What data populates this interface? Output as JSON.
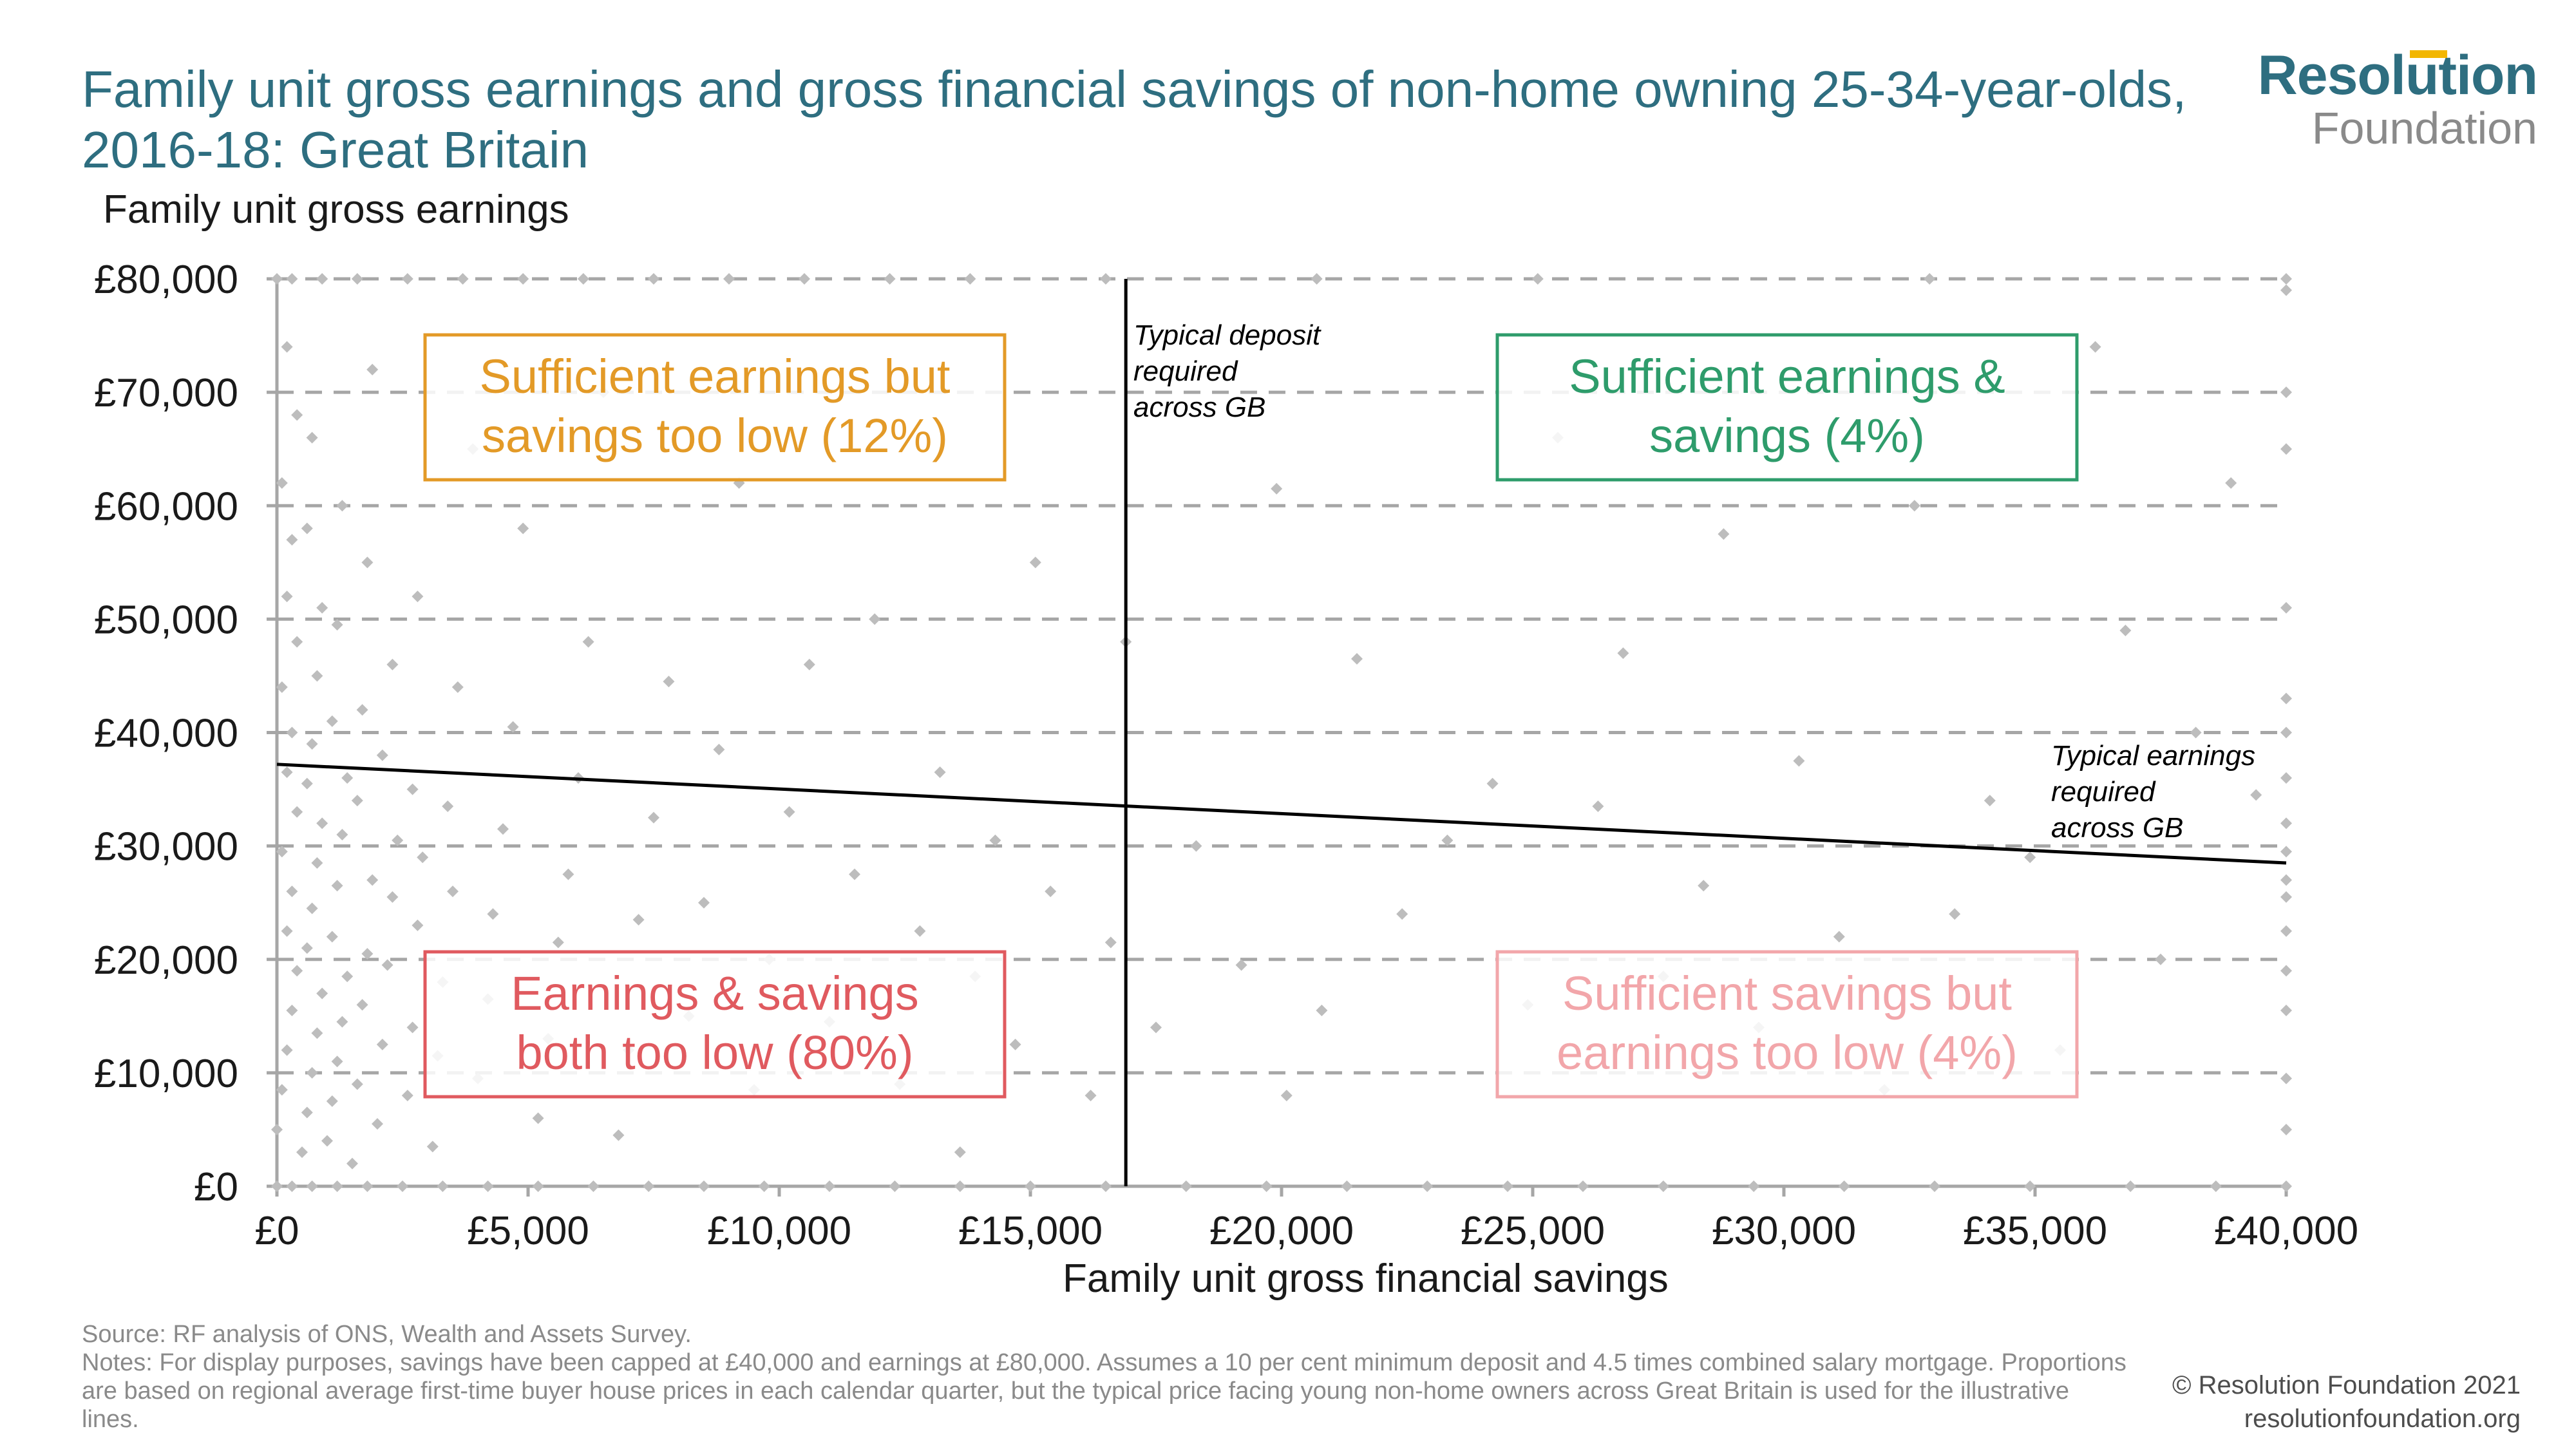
{
  "header": {
    "title": "Family unit gross earnings and gross financial savings of non-home owning 25-34-year-olds, 2016-18: Great Britain"
  },
  "logo": {
    "name": "Resolution",
    "sub": "Foundation",
    "accent_color": "#f2b600",
    "main_color": "#2e6e80"
  },
  "chart_data": {
    "type": "scatter",
    "title": "Family unit gross earnings and gross financial savings of non-home owning 25-34-year-olds, 2016-18: Great Britain",
    "xlabel": "Family unit gross financial savings",
    "ylabel": "Family unit gross earnings",
    "xlim": [
      0,
      40000
    ],
    "ylim": [
      0,
      80000
    ],
    "x_ticks": [
      0,
      5000,
      10000,
      15000,
      20000,
      25000,
      30000,
      35000,
      40000
    ],
    "x_tick_labels": [
      "£0",
      "£5,000",
      "£10,000",
      "£15,000",
      "£20,000",
      "£25,000",
      "£30,000",
      "£35,000",
      "£40,000"
    ],
    "y_ticks": [
      0,
      10000,
      20000,
      30000,
      40000,
      50000,
      60000,
      70000,
      80000
    ],
    "y_tick_labels": [
      "£0",
      "£10,000",
      "£20,000",
      "£30,000",
      "£40,000",
      "£50,000",
      "£60,000",
      "£70,000",
      "£80,000"
    ],
    "grid": "horizontal dashed",
    "point_color": "#bdbdbd",
    "points": [
      [
        0,
        0
      ],
      [
        300,
        0
      ],
      [
        700,
        0
      ],
      [
        1200,
        0
      ],
      [
        1800,
        0
      ],
      [
        2500,
        0
      ],
      [
        3300,
        0
      ],
      [
        4200,
        0
      ],
      [
        5200,
        0
      ],
      [
        6300,
        0
      ],
      [
        7400,
        0
      ],
      [
        8500,
        0
      ],
      [
        9700,
        0
      ],
      [
        11000,
        0
      ],
      [
        12300,
        0
      ],
      [
        13600,
        0
      ],
      [
        15000,
        0
      ],
      [
        16500,
        0
      ],
      [
        18100,
        0
      ],
      [
        19700,
        0
      ],
      [
        21300,
        0
      ],
      [
        22900,
        0
      ],
      [
        24500,
        0
      ],
      [
        26000,
        0
      ],
      [
        27600,
        0
      ],
      [
        29400,
        0
      ],
      [
        31200,
        0
      ],
      [
        33000,
        0
      ],
      [
        34900,
        0
      ],
      [
        36900,
        0
      ],
      [
        38600,
        0
      ],
      [
        40000,
        0
      ],
      [
        0,
        80000
      ],
      [
        300,
        80000
      ],
      [
        900,
        80000
      ],
      [
        1600,
        80000
      ],
      [
        2600,
        80000
      ],
      [
        3700,
        80000
      ],
      [
        4900,
        80000
      ],
      [
        6100,
        80000
      ],
      [
        7500,
        80000
      ],
      [
        9000,
        80000
      ],
      [
        10500,
        80000
      ],
      [
        12200,
        80000
      ],
      [
        13800,
        80000
      ],
      [
        16500,
        80000
      ],
      [
        20700,
        80000
      ],
      [
        25100,
        80000
      ],
      [
        32900,
        80000
      ],
      [
        40000,
        80000
      ],
      [
        0,
        5000
      ],
      [
        100,
        8500
      ],
      [
        200,
        12000
      ],
      [
        300,
        15500
      ],
      [
        400,
        19000
      ],
      [
        200,
        22500
      ],
      [
        300,
        26000
      ],
      [
        100,
        29500
      ],
      [
        400,
        33000
      ],
      [
        200,
        36500
      ],
      [
        300,
        40000
      ],
      [
        100,
        44000
      ],
      [
        400,
        48000
      ],
      [
        200,
        52000
      ],
      [
        300,
        57000
      ],
      [
        100,
        62000
      ],
      [
        400,
        68000
      ],
      [
        200,
        74000
      ],
      [
        500,
        3000
      ],
      [
        600,
        6500
      ],
      [
        700,
        10000
      ],
      [
        800,
        13500
      ],
      [
        900,
        17000
      ],
      [
        600,
        21000
      ],
      [
        700,
        24500
      ],
      [
        800,
        28500
      ],
      [
        900,
        32000
      ],
      [
        600,
        35500
      ],
      [
        700,
        39000
      ],
      [
        800,
        45000
      ],
      [
        900,
        51000
      ],
      [
        600,
        58000
      ],
      [
        700,
        66000
      ],
      [
        1000,
        4000
      ],
      [
        1100,
        7500
      ],
      [
        1200,
        11000
      ],
      [
        1300,
        14500
      ],
      [
        1400,
        18500
      ],
      [
        1100,
        22000
      ],
      [
        1200,
        26500
      ],
      [
        1300,
        31000
      ],
      [
        1400,
        36000
      ],
      [
        1100,
        41000
      ],
      [
        1200,
        49500
      ],
      [
        1300,
        60000
      ],
      [
        1500,
        2000
      ],
      [
        1600,
        9000
      ],
      [
        1700,
        16000
      ],
      [
        1800,
        20500
      ],
      [
        1900,
        27000
      ],
      [
        1600,
        34000
      ],
      [
        1700,
        42000
      ],
      [
        1800,
        55000
      ],
      [
        1900,
        72000
      ],
      [
        2000,
        5500
      ],
      [
        2100,
        12500
      ],
      [
        2200,
        19500
      ],
      [
        2300,
        25500
      ],
      [
        2400,
        30500
      ],
      [
        2100,
        38000
      ],
      [
        2300,
        46000
      ],
      [
        2600,
        8000
      ],
      [
        2700,
        14000
      ],
      [
        2800,
        23000
      ],
      [
        2900,
        29000
      ],
      [
        2700,
        35000
      ],
      [
        2800,
        52000
      ],
      [
        3100,
        3500
      ],
      [
        3200,
        11500
      ],
      [
        3300,
        18000
      ],
      [
        3500,
        26000
      ],
      [
        3400,
        33500
      ],
      [
        3600,
        44000
      ],
      [
        3900,
        65000
      ],
      [
        4000,
        9500
      ],
      [
        4200,
        16500
      ],
      [
        4300,
        24000
      ],
      [
        4500,
        31500
      ],
      [
        4700,
        40500
      ],
      [
        4900,
        58000
      ],
      [
        5200,
        6000
      ],
      [
        5400,
        13000
      ],
      [
        5600,
        21500
      ],
      [
        5800,
        27500
      ],
      [
        6000,
        36000
      ],
      [
        6200,
        48000
      ],
      [
        6500,
        70000
      ],
      [
        6800,
        4500
      ],
      [
        7000,
        12000
      ],
      [
        7200,
        23500
      ],
      [
        7500,
        32500
      ],
      [
        7800,
        44500
      ],
      [
        8200,
        15000
      ],
      [
        8500,
        25000
      ],
      [
        8800,
        38500
      ],
      [
        9200,
        62000
      ],
      [
        9500,
        8500
      ],
      [
        9800,
        20000
      ],
      [
        10200,
        33000
      ],
      [
        10600,
        46000
      ],
      [
        11000,
        14500
      ],
      [
        11500,
        27500
      ],
      [
        11900,
        50000
      ],
      [
        12400,
        9000
      ],
      [
        12800,
        22500
      ],
      [
        13200,
        36500
      ],
      [
        13600,
        3000
      ],
      [
        13900,
        18500
      ],
      [
        14300,
        30500
      ],
      [
        14700,
        12500
      ],
      [
        15100,
        55000
      ],
      [
        15400,
        26000
      ],
      [
        16200,
        8000
      ],
      [
        16600,
        21500
      ],
      [
        16900,
        48000
      ],
      [
        17500,
        14000
      ],
      [
        18300,
        30000
      ],
      [
        19200,
        19500
      ],
      [
        19900,
        61500
      ],
      [
        20100,
        8000
      ],
      [
        20800,
        15500
      ],
      [
        21500,
        46500
      ],
      [
        22400,
        24000
      ],
      [
        23300,
        30500
      ],
      [
        24200,
        35500
      ],
      [
        24900,
        16000
      ],
      [
        25500,
        66000
      ],
      [
        26300,
        33500
      ],
      [
        26800,
        47000
      ],
      [
        27600,
        18500
      ],
      [
        28400,
        26500
      ],
      [
        28800,
        57500
      ],
      [
        29500,
        14000
      ],
      [
        30300,
        37500
      ],
      [
        31100,
        22000
      ],
      [
        32000,
        8500
      ],
      [
        32600,
        60000
      ],
      [
        33400,
        24000
      ],
      [
        34100,
        34000
      ],
      [
        34900,
        29000
      ],
      [
        35500,
        12000
      ],
      [
        36200,
        74000
      ],
      [
        36800,
        49000
      ],
      [
        37500,
        20000
      ],
      [
        38200,
        40000
      ],
      [
        38900,
        62000
      ],
      [
        39400,
        34500
      ],
      [
        40000,
        5000
      ],
      [
        40000,
        9500
      ],
      [
        40000,
        15500
      ],
      [
        40000,
        19000
      ],
      [
        40000,
        22500
      ],
      [
        40000,
        25500
      ],
      [
        40000,
        27000
      ],
      [
        40000,
        29500
      ],
      [
        40000,
        32000
      ],
      [
        40000,
        36000
      ],
      [
        40000,
        40000
      ],
      [
        40000,
        43000
      ],
      [
        40000,
        51000
      ],
      [
        40000,
        65000
      ],
      [
        40000,
        70000
      ],
      [
        40000,
        79000
      ]
    ],
    "lines": [
      {
        "name": "deposit",
        "type": "vertical",
        "x": 16900,
        "y_range": [
          0,
          80000
        ]
      },
      {
        "name": "earnings",
        "type": "segment",
        "from": [
          0,
          37200
        ],
        "to": [
          40000,
          28500
        ]
      }
    ],
    "annotations": [
      {
        "text": "Typical deposit required across GB",
        "lines": [
          "Typical deposit",
          "required",
          "across GB"
        ],
        "position": "right of deposit line, top"
      },
      {
        "text": "Typical earnings required across GB",
        "lines": [
          "Typical earnings",
          "required",
          "across GB"
        ],
        "position": "above earnings line, right end"
      }
    ],
    "quadrant_boxes": [
      {
        "lines": [
          "Sufficient earnings but",
          "savings too low (12%)"
        ],
        "color": "#e39a27",
        "position": "top-left"
      },
      {
        "lines": [
          "Sufficient earnings &",
          "savings (4%)"
        ],
        "color": "#2e9c6b",
        "position": "top-right"
      },
      {
        "lines": [
          "Earnings & savings",
          "both too low (80%)"
        ],
        "color": "#e05a5f",
        "position": "bottom-left"
      },
      {
        "lines": [
          "Sufficient savings but",
          "earnings too low (4%)"
        ],
        "color": "#f2a6aa",
        "position": "bottom-right"
      }
    ]
  },
  "footer": {
    "source": "Source: RF analysis of ONS, Wealth and Assets Survey.",
    "notes": "Notes: For display purposes, savings have been capped at £40,000 and earnings at £80,000. Assumes a 10 per cent minimum deposit and 4.5 times combined salary mortgage. Proportions are based on regional average first-time buyer house prices in each calendar quarter, but the typical price facing young non-home owners across Great Britain is used for the illustrative lines."
  },
  "copyright": {
    "line1": "© Resolution Foundation 2021",
    "line2": "resolutionfoundation.org"
  }
}
